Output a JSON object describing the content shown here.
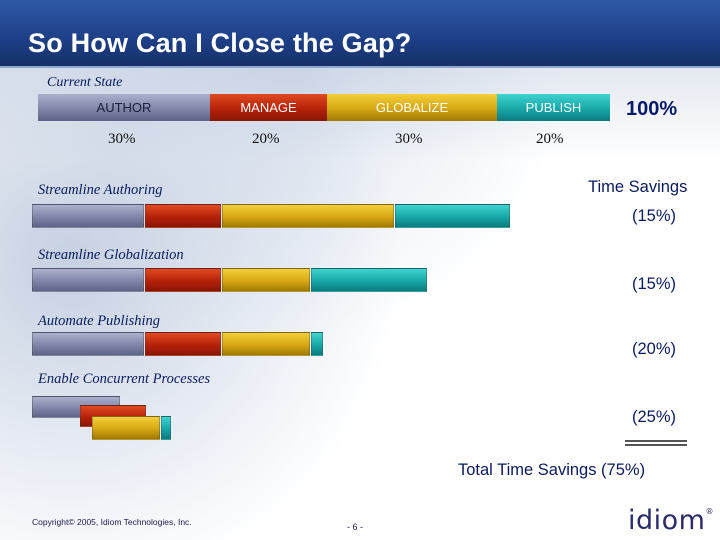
{
  "title": "So How Can I Close the Gap?",
  "current_state": {
    "label": "Current State",
    "total": "100%",
    "stages": [
      {
        "name": "AUTHOR",
        "percent": "30%"
      },
      {
        "name": "MANAGE",
        "percent": "20%"
      },
      {
        "name": "GLOBALIZE",
        "percent": "30%"
      },
      {
        "name": "PUBLISH",
        "percent": "20%"
      }
    ]
  },
  "time_savings_header": "Time Savings",
  "scenarios": [
    {
      "label": "Streamline Authoring",
      "savings": "(15%)"
    },
    {
      "label": "Streamline Globalization",
      "savings": "(15%)"
    },
    {
      "label": "Automate Publishing",
      "savings": "(20%)"
    },
    {
      "label": "Enable Concurrent Processes",
      "savings": "(25%)"
    }
  ],
  "total_savings": "Total Time Savings (75%)",
  "footer": {
    "copyright": "Copyright© 2005, Idiom Technologies, Inc.",
    "page": "- 6 -",
    "logo": "idiom",
    "logo_mark": "®"
  },
  "colors": {
    "author": "#7f86a8",
    "manage": "#b52208",
    "globalize": "#d6a712",
    "publish": "#17a7a8",
    "header": "#1d3f86"
  }
}
